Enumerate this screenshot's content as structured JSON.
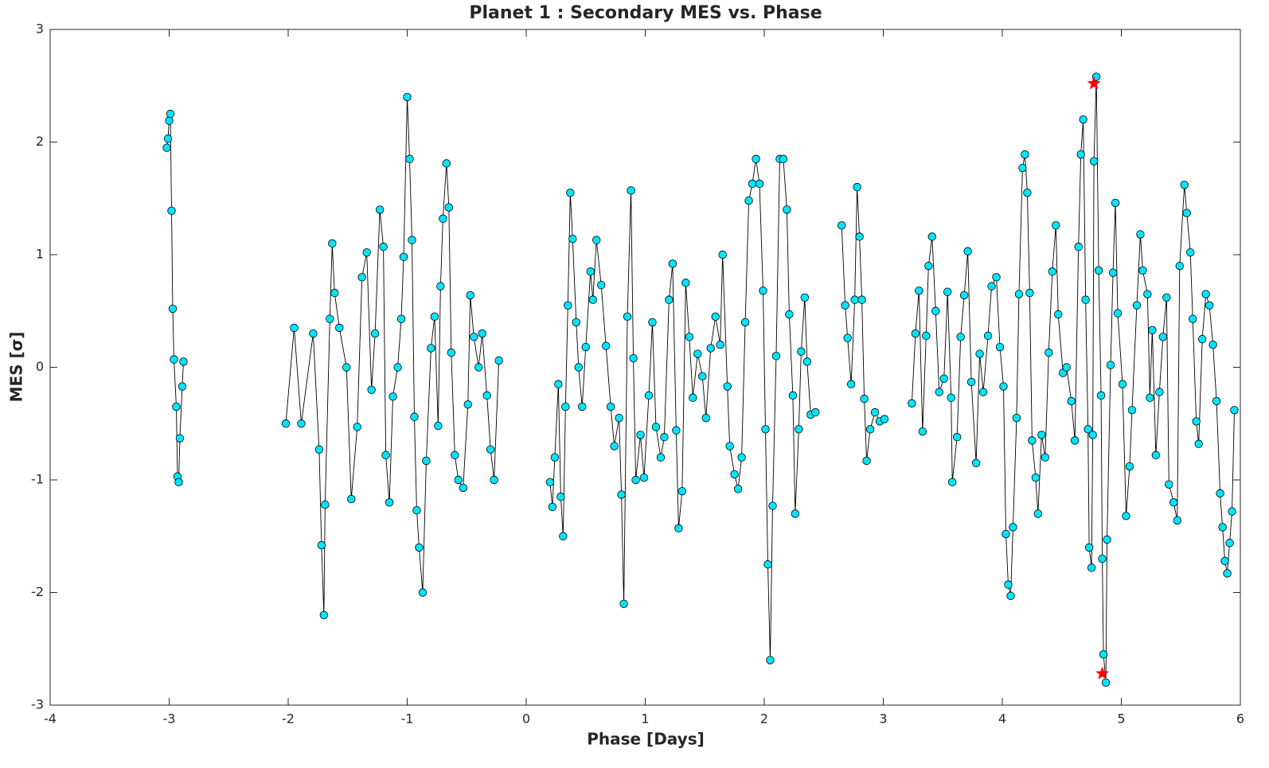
{
  "chart_data": {
    "type": "line",
    "title": "Planet 1 : Secondary MES vs. Phase",
    "xlabel": "Phase [Days]",
    "ylabel": "MES [σ]",
    "xlim": [
      -4,
      6
    ],
    "ylim": [
      -3,
      3
    ],
    "xticks": [
      -4,
      -3,
      -2,
      -1,
      0,
      1,
      2,
      3,
      4,
      5,
      6
    ],
    "yticks": [
      -3,
      -2,
      -1,
      0,
      1,
      2,
      3
    ],
    "grid": false,
    "series": [
      {
        "color": "#000000",
        "marker": "circle",
        "marker_color": "#00e5ff",
        "x": [
          -3.02,
          -3.01,
          -3.0,
          -2.99,
          -2.98,
          -2.97,
          -2.96,
          -2.94,
          -2.93,
          -2.92,
          -2.91,
          -2.89,
          -2.88,
          null,
          -2.02,
          -1.95,
          -1.89,
          -1.79,
          -1.74,
          -1.72,
          -1.7,
          -1.69,
          -1.65,
          -1.63,
          -1.61,
          -1.57,
          -1.51,
          -1.47,
          -1.42,
          -1.38,
          -1.34,
          -1.3,
          -1.27,
          -1.23,
          -1.2,
          -1.18,
          -1.15,
          -1.12,
          -1.08,
          -1.05,
          -1.03,
          -1.0,
          -0.98,
          -0.96,
          -0.94,
          -0.92,
          -0.9,
          -0.87,
          -0.84,
          -0.8,
          -0.77,
          -0.74,
          -0.72,
          -0.7,
          -0.67,
          -0.65,
          -0.63,
          -0.6,
          -0.57,
          -0.53,
          -0.49,
          -0.47,
          -0.44,
          -0.4,
          -0.37,
          -0.33,
          -0.3,
          -0.27,
          -0.23,
          null,
          0.2,
          0.22,
          0.24,
          0.27,
          0.29,
          0.31,
          0.33,
          0.35,
          0.37,
          0.39,
          0.42,
          0.44,
          0.47,
          0.5,
          0.54,
          0.56,
          0.59,
          0.63,
          0.67,
          0.71,
          0.74,
          0.78,
          0.8,
          0.82,
          0.85,
          0.88,
          0.9,
          0.92,
          0.96,
          0.99,
          1.03,
          1.06,
          1.09,
          1.13,
          1.16,
          1.2,
          1.23,
          1.26,
          1.28,
          1.31,
          1.34,
          1.37,
          1.4,
          1.44,
          1.48,
          1.51,
          1.55,
          1.59,
          1.63,
          1.65,
          1.69,
          1.71,
          1.75,
          1.78,
          1.81,
          1.84,
          1.87,
          1.9,
          1.93,
          1.96,
          1.99,
          2.01,
          2.03,
          2.05,
          2.07,
          2.1,
          2.13,
          2.16,
          2.19,
          2.21,
          2.24,
          2.26,
          2.29,
          2.31,
          2.34,
          2.36,
          2.39,
          2.43,
          null,
          2.65,
          2.68,
          2.7,
          2.73,
          2.76,
          2.78,
          2.8,
          2.82,
          2.84,
          2.86,
          2.89,
          2.93,
          2.97,
          3.01,
          null,
          3.24,
          3.27,
          3.3,
          3.33,
          3.36,
          3.38,
          3.41,
          3.44,
          3.47,
          3.51,
          3.54,
          3.57,
          3.58,
          3.62,
          3.65,
          3.68,
          3.71,
          3.74,
          3.78,
          3.81,
          3.84,
          3.88,
          3.91,
          3.95,
          3.98,
          4.01,
          4.03,
          4.05,
          4.07,
          4.09,
          4.12,
          4.14,
          4.17,
          4.19,
          4.21,
          4.23,
          4.25,
          4.28,
          4.3,
          4.33,
          4.36,
          4.39,
          4.42,
          4.45,
          4.47,
          4.51,
          4.54,
          4.58,
          4.61,
          4.64,
          4.66,
          4.68,
          4.7,
          4.72,
          4.73,
          4.75,
          4.76,
          4.77,
          4.79,
          4.81,
          4.83,
          4.84,
          4.85,
          4.87,
          4.88,
          4.91,
          4.93,
          4.95,
          4.97,
          5.01,
          5.04,
          5.07,
          5.09,
          5.13,
          5.16,
          5.18,
          5.22,
          5.24,
          5.26,
          5.29,
          5.32,
          5.35,
          5.38,
          5.4,
          5.44,
          5.47,
          5.49,
          5.53,
          5.55,
          5.58,
          5.6,
          5.63,
          5.65,
          5.68,
          5.71,
          5.74,
          5.77,
          5.8,
          5.83,
          5.85,
          5.87,
          5.89,
          5.91,
          5.93,
          5.95
        ],
        "values": [
          1.95,
          2.03,
          2.19,
          2.25,
          1.39,
          0.52,
          0.07,
          -0.35,
          -0.97,
          -1.02,
          -0.63,
          -0.17,
          0.05,
          null,
          -0.5,
          0.35,
          -0.5,
          0.3,
          -0.73,
          -1.58,
          -2.2,
          -1.22,
          0.43,
          1.1,
          0.66,
          0.35,
          0.0,
          -1.17,
          -0.53,
          0.8,
          1.02,
          -0.2,
          0.3,
          1.4,
          1.07,
          -0.78,
          -1.2,
          -0.26,
          0.0,
          0.43,
          0.98,
          2.4,
          1.85,
          1.13,
          -0.44,
          -1.27,
          -1.6,
          -2.0,
          -0.83,
          0.17,
          0.45,
          -0.52,
          0.72,
          1.32,
          1.81,
          1.42,
          0.13,
          -0.78,
          -1.0,
          -1.07,
          -0.33,
          0.64,
          0.27,
          0.0,
          0.3,
          -0.25,
          -0.73,
          -1.0,
          0.06,
          null,
          -1.02,
          -1.24,
          -0.8,
          -0.15,
          -1.15,
          -1.5,
          -0.35,
          0.55,
          1.55,
          1.14,
          0.4,
          0.0,
          -0.35,
          0.18,
          0.85,
          0.6,
          1.13,
          0.73,
          0.19,
          -0.35,
          -0.7,
          -0.45,
          -1.13,
          -2.1,
          0.45,
          1.57,
          0.08,
          -1.0,
          -0.6,
          -0.98,
          -0.25,
          0.4,
          -0.53,
          -0.8,
          -0.62,
          0.6,
          0.92,
          -0.56,
          -1.43,
          -1.1,
          0.75,
          0.27,
          -0.27,
          0.12,
          -0.08,
          -0.45,
          0.17,
          0.45,
          0.2,
          1.0,
          -0.17,
          -0.7,
          -0.95,
          -1.08,
          -0.8,
          0.4,
          1.48,
          1.63,
          1.85,
          1.63,
          0.68,
          -0.55,
          -1.75,
          -2.6,
          -1.23,
          0.1,
          1.85,
          1.85,
          1.4,
          0.47,
          -0.25,
          -1.3,
          -0.55,
          0.14,
          0.62,
          0.05,
          -0.42,
          -0.4,
          null,
          1.26,
          0.55,
          0.26,
          -0.15,
          0.6,
          1.6,
          1.16,
          0.6,
          -0.28,
          -0.83,
          -0.55,
          -0.4,
          -0.48,
          -0.46,
          null,
          -0.32,
          0.3,
          0.68,
          -0.57,
          0.28,
          0.9,
          1.16,
          0.5,
          -0.22,
          -0.1,
          0.67,
          -0.27,
          -1.02,
          -0.62,
          0.27,
          0.64,
          1.03,
          -0.13,
          -0.85,
          0.12,
          -0.22,
          0.28,
          0.72,
          0.8,
          0.18,
          -0.17,
          -1.48,
          -1.93,
          -2.03,
          -1.42,
          -0.45,
          0.65,
          1.77,
          1.89,
          1.55,
          0.66,
          -0.65,
          -0.98,
          -1.3,
          -0.6,
          -0.8,
          0.13,
          0.85,
          1.26,
          0.47,
          -0.05,
          0.0,
          -0.3,
          -0.65,
          1.07,
          1.89,
          2.2,
          0.6,
          -0.55,
          -1.6,
          -1.78,
          -0.6,
          1.83,
          2.58,
          0.86,
          -0.25,
          -1.7,
          -2.55,
          -2.8,
          -1.53,
          0.02,
          0.84,
          1.46,
          0.48,
          -0.15,
          -1.32,
          -0.88,
          -0.38,
          0.55,
          1.18,
          0.86,
          0.65,
          -0.27,
          0.33,
          -0.78,
          -0.22,
          0.27,
          0.62,
          -1.04,
          -1.2,
          -1.36,
          0.9,
          1.62,
          1.37,
          1.02,
          0.43,
          -0.48,
          -0.68,
          0.25,
          0.65,
          0.55,
          0.2,
          -0.3,
          -1.12,
          -1.42,
          -1.72,
          -1.83,
          -1.56,
          -1.28,
          -0.38
        ]
      },
      {
        "color": "#ff0000",
        "marker": "star",
        "x": [
          4.77,
          4.84
        ],
        "values": [
          2.52,
          -2.72
        ]
      }
    ]
  }
}
